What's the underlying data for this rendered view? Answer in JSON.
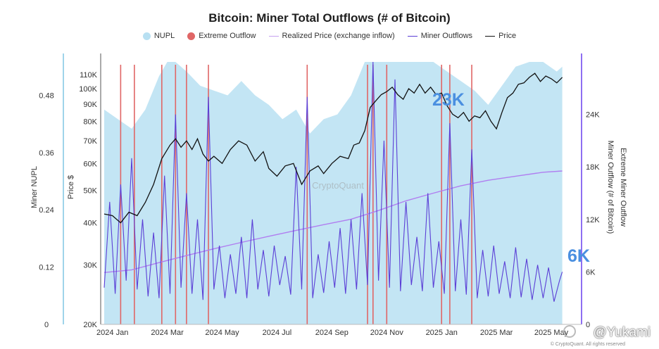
{
  "chart_data": {
    "type": "area",
    "title": "Bitcoin: Miner Total Outflows (# of Bitcoin)",
    "legend": [
      {
        "name": "NUPL",
        "color": "#b8e0f2",
        "kind": "dot"
      },
      {
        "name": "Extreme Outflow",
        "color": "#e06666",
        "kind": "dot"
      },
      {
        "name": "Realized Price (exchange inflow)",
        "color": "#c7a2f0",
        "kind": "line"
      },
      {
        "name": "Miner Outflows",
        "color": "#5b3fd6",
        "kind": "line"
      },
      {
        "name": "Price",
        "color": "#111111",
        "kind": "line"
      }
    ],
    "x_ticks": [
      "2024 Jan",
      "2024 Mar",
      "2024 May",
      "2024 Jul",
      "2024 Sep",
      "2024 Nov",
      "2025 Jan",
      "2025 Mar",
      "2025 May"
    ],
    "x_range_months": [
      0,
      17.3
    ],
    "nupl_axis": {
      "label": "Miner NUPL",
      "ticks": [
        "0.48",
        "0.36",
        "0.24",
        "0.12",
        "0"
      ],
      "range": [
        0,
        0.55
      ]
    },
    "price_axis": {
      "label": "Price $",
      "ticks": [
        "110K",
        "100K",
        "90K",
        "80K",
        "70K",
        "60K",
        "50K",
        "40K",
        "30K",
        "20K"
      ],
      "scale": "log",
      "range": [
        20000,
        120000
      ]
    },
    "outflow_axis": {
      "label": "Miner Outflow (# of Bitcoin)",
      "ticks": [
        "24K",
        "18K",
        "12K",
        "6K",
        "0"
      ],
      "range": [
        0,
        30000
      ]
    },
    "extreme_axis": {
      "label": "Extreme Miner Outflow"
    },
    "annotations": {
      "peak_label": "23K",
      "latest_label": "6K"
    },
    "watermark": "CryptoQuant",
    "footer": "© CryptoQuant. All rights reserved",
    "credit": "@Yukami",
    "price": [
      [
        0,
        42500
      ],
      [
        0.3,
        42000
      ],
      [
        0.6,
        40000
      ],
      [
        0.9,
        43000
      ],
      [
        1.2,
        42000
      ],
      [
        1.5,
        46000
      ],
      [
        1.8,
        52000
      ],
      [
        2.1,
        62000
      ],
      [
        2.4,
        68000
      ],
      [
        2.6,
        71000
      ],
      [
        2.8,
        67000
      ],
      [
        3.0,
        70000
      ],
      [
        3.2,
        66000
      ],
      [
        3.4,
        71000
      ],
      [
        3.6,
        64000
      ],
      [
        3.8,
        61000
      ],
      [
        4.0,
        63000
      ],
      [
        4.3,
        60000
      ],
      [
        4.6,
        66000
      ],
      [
        4.9,
        70000
      ],
      [
        5.2,
        68000
      ],
      [
        5.5,
        61000
      ],
      [
        5.8,
        65000
      ],
      [
        6.0,
        58000
      ],
      [
        6.3,
        55000
      ],
      [
        6.6,
        59000
      ],
      [
        6.9,
        60000
      ],
      [
        7.2,
        52000
      ],
      [
        7.5,
        57000
      ],
      [
        7.8,
        59000
      ],
      [
        8.0,
        56000
      ],
      [
        8.3,
        60000
      ],
      [
        8.6,
        63000
      ],
      [
        8.9,
        62000
      ],
      [
        9.1,
        68000
      ],
      [
        9.3,
        69000
      ],
      [
        9.5,
        75000
      ],
      [
        9.7,
        88000
      ],
      [
        9.9,
        92000
      ],
      [
        10.1,
        96000
      ],
      [
        10.3,
        98000
      ],
      [
        10.5,
        101000
      ],
      [
        10.7,
        96000
      ],
      [
        10.9,
        93000
      ],
      [
        11.1,
        100000
      ],
      [
        11.3,
        97000
      ],
      [
        11.5,
        103000
      ],
      [
        11.7,
        97000
      ],
      [
        11.9,
        101000
      ],
      [
        12.1,
        96000
      ],
      [
        12.3,
        97000
      ],
      [
        12.5,
        89000
      ],
      [
        12.7,
        84000
      ],
      [
        12.9,
        82000
      ],
      [
        13.1,
        85000
      ],
      [
        13.3,
        80000
      ],
      [
        13.5,
        83000
      ],
      [
        13.7,
        82000
      ],
      [
        13.9,
        86000
      ],
      [
        14.1,
        80000
      ],
      [
        14.3,
        76000
      ],
      [
        14.5,
        85000
      ],
      [
        14.7,
        94000
      ],
      [
        14.9,
        97000
      ],
      [
        15.1,
        103000
      ],
      [
        15.3,
        104000
      ],
      [
        15.5,
        108000
      ],
      [
        15.7,
        111000
      ],
      [
        15.9,
        105000
      ],
      [
        16.1,
        109000
      ],
      [
        16.3,
        107000
      ],
      [
        16.5,
        104000
      ],
      [
        16.7,
        108000
      ]
    ],
    "nupl": [
      [
        0,
        0.45
      ],
      [
        0.5,
        0.43
      ],
      [
        1.0,
        0.41
      ],
      [
        1.5,
        0.45
      ],
      [
        2.0,
        0.52
      ],
      [
        2.3,
        0.55
      ],
      [
        2.6,
        0.56
      ],
      [
        3.0,
        0.53
      ],
      [
        3.5,
        0.5
      ],
      [
        4.0,
        0.49
      ],
      [
        4.5,
        0.48
      ],
      [
        5.0,
        0.51
      ],
      [
        5.5,
        0.48
      ],
      [
        6.0,
        0.46
      ],
      [
        6.5,
        0.43
      ],
      [
        7.0,
        0.45
      ],
      [
        7.5,
        0.4
      ],
      [
        8.0,
        0.43
      ],
      [
        8.5,
        0.44
      ],
      [
        9.0,
        0.48
      ],
      [
        9.5,
        0.55
      ],
      [
        10.0,
        0.59
      ],
      [
        10.5,
        0.61
      ],
      [
        11.0,
        0.58
      ],
      [
        11.5,
        0.6
      ],
      [
        12.0,
        0.57
      ],
      [
        12.5,
        0.53
      ],
      [
        13.0,
        0.51
      ],
      [
        13.5,
        0.49
      ],
      [
        14.0,
        0.46
      ],
      [
        14.5,
        0.5
      ],
      [
        15.0,
        0.54
      ],
      [
        15.5,
        0.56
      ],
      [
        16.0,
        0.55
      ],
      [
        16.5,
        0.53
      ],
      [
        16.7,
        0.54
      ]
    ],
    "realized_price": [
      [
        0,
        28500
      ],
      [
        1,
        29000
      ],
      [
        2,
        30500
      ],
      [
        3,
        32000
      ],
      [
        4,
        33500
      ],
      [
        5,
        35000
      ],
      [
        6,
        36500
      ],
      [
        7,
        38000
      ],
      [
        8,
        39500
      ],
      [
        9,
        41000
      ],
      [
        10,
        43500
      ],
      [
        11,
        46500
      ],
      [
        12,
        49000
      ],
      [
        13,
        51500
      ],
      [
        14,
        53500
      ],
      [
        15,
        55000
      ],
      [
        16,
        56500
      ],
      [
        16.7,
        57000
      ]
    ],
    "miner_outflows": [
      [
        0,
        4200
      ],
      [
        0.2,
        14000
      ],
      [
        0.4,
        3500
      ],
      [
        0.6,
        16000
      ],
      [
        0.8,
        5000
      ],
      [
        1.0,
        19000
      ],
      [
        1.2,
        4000
      ],
      [
        1.4,
        12000
      ],
      [
        1.6,
        3200
      ],
      [
        1.8,
        10500
      ],
      [
        2.0,
        3000
      ],
      [
        2.2,
        17000
      ],
      [
        2.4,
        3500
      ],
      [
        2.6,
        24000
      ],
      [
        2.8,
        4200
      ],
      [
        3.0,
        15000
      ],
      [
        3.2,
        3500
      ],
      [
        3.4,
        12000
      ],
      [
        3.6,
        2800
      ],
      [
        3.8,
        26000
      ],
      [
        4.0,
        4000
      ],
      [
        4.2,
        9000
      ],
      [
        4.4,
        3000
      ],
      [
        4.6,
        8000
      ],
      [
        4.8,
        3500
      ],
      [
        5.0,
        10000
      ],
      [
        5.2,
        3000
      ],
      [
        5.4,
        12000
      ],
      [
        5.6,
        4000
      ],
      [
        5.8,
        8500
      ],
      [
        6.0,
        3200
      ],
      [
        6.2,
        9000
      ],
      [
        6.4,
        4500
      ],
      [
        6.6,
        7800
      ],
      [
        6.8,
        3400
      ],
      [
        7.0,
        18000
      ],
      [
        7.2,
        4000
      ],
      [
        7.4,
        26000
      ],
      [
        7.6,
        3000
      ],
      [
        7.8,
        8000
      ],
      [
        8.0,
        3600
      ],
      [
        8.2,
        9500
      ],
      [
        8.4,
        4200
      ],
      [
        8.6,
        11000
      ],
      [
        8.8,
        3500
      ],
      [
        9.0,
        12000
      ],
      [
        9.2,
        4000
      ],
      [
        9.4,
        15000
      ],
      [
        9.6,
        4500
      ],
      [
        9.8,
        30000
      ],
      [
        10.0,
        5000
      ],
      [
        10.2,
        21000
      ],
      [
        10.4,
        4200
      ],
      [
        10.6,
        28000
      ],
      [
        10.8,
        3800
      ],
      [
        11.0,
        14000
      ],
      [
        11.2,
        4500
      ],
      [
        11.4,
        10000
      ],
      [
        11.6,
        3800
      ],
      [
        11.8,
        15000
      ],
      [
        12.0,
        4200
      ],
      [
        12.2,
        9500
      ],
      [
        12.4,
        3500
      ],
      [
        12.6,
        23000
      ],
      [
        12.8,
        3800
      ],
      [
        13.0,
        12000
      ],
      [
        13.2,
        3400
      ],
      [
        13.4,
        20000
      ],
      [
        13.6,
        3000
      ],
      [
        13.8,
        8500
      ],
      [
        14.0,
        3200
      ],
      [
        14.2,
        9000
      ],
      [
        14.4,
        3500
      ],
      [
        14.6,
        7200
      ],
      [
        14.8,
        3000
      ],
      [
        15.0,
        8800
      ],
      [
        15.2,
        3100
      ],
      [
        15.4,
        7500
      ],
      [
        15.6,
        2800
      ],
      [
        15.8,
        6800
      ],
      [
        16.0,
        3000
      ],
      [
        16.2,
        6500
      ],
      [
        16.4,
        2600
      ],
      [
        16.6,
        5000
      ],
      [
        16.7,
        6000
      ]
    ],
    "extreme_outflow_months": [
      0.6,
      1.1,
      2.1,
      2.6,
      3.0,
      3.8,
      7.4,
      9.6,
      9.8,
      10.3,
      12.3,
      12.6,
      13.4
    ]
  }
}
